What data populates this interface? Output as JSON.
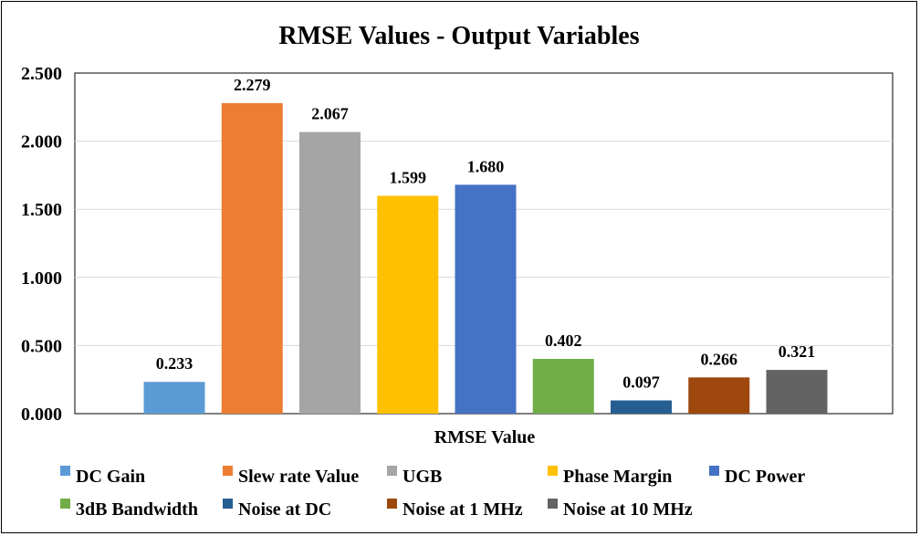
{
  "chart_data": {
    "type": "bar",
    "title": "RMSE Values - Output Variables",
    "xlabel": "RMSE Value",
    "ylabel": "",
    "ylim": [
      0,
      2.5
    ],
    "yticks": [
      "0.000",
      "0.500",
      "1.000",
      "1.500",
      "2.000",
      "2.500"
    ],
    "grid": true,
    "legend_position": "bottom",
    "series": [
      {
        "name": "DC Gain",
        "value": 0.233,
        "label": "0.233",
        "color": "#5B9BD5"
      },
      {
        "name": "Slew rate Value",
        "value": 2.279,
        "label": "2.279",
        "color": "#ED7D31"
      },
      {
        "name": "UGB",
        "value": 2.067,
        "label": "2.067",
        "color": "#A5A5A5"
      },
      {
        "name": "Phase Margin",
        "value": 1.599,
        "label": "1.599",
        "color": "#FFC000"
      },
      {
        "name": "DC Power",
        "value": 1.68,
        "label": "1.680",
        "color": "#4472C4"
      },
      {
        "name": "3dB Bandwidth",
        "value": 0.402,
        "label": "0.402",
        "color": "#70AD47"
      },
      {
        "name": "Noise at DC",
        "value": 0.097,
        "label": "0.097",
        "color": "#255E91"
      },
      {
        "name": "Noise at 1 MHz",
        "value": 0.266,
        "label": "0.266",
        "color": "#9E480E"
      },
      {
        "name": "Noise at 10 MHz",
        "value": 0.321,
        "label": "0.321",
        "color": "#636363"
      }
    ]
  }
}
